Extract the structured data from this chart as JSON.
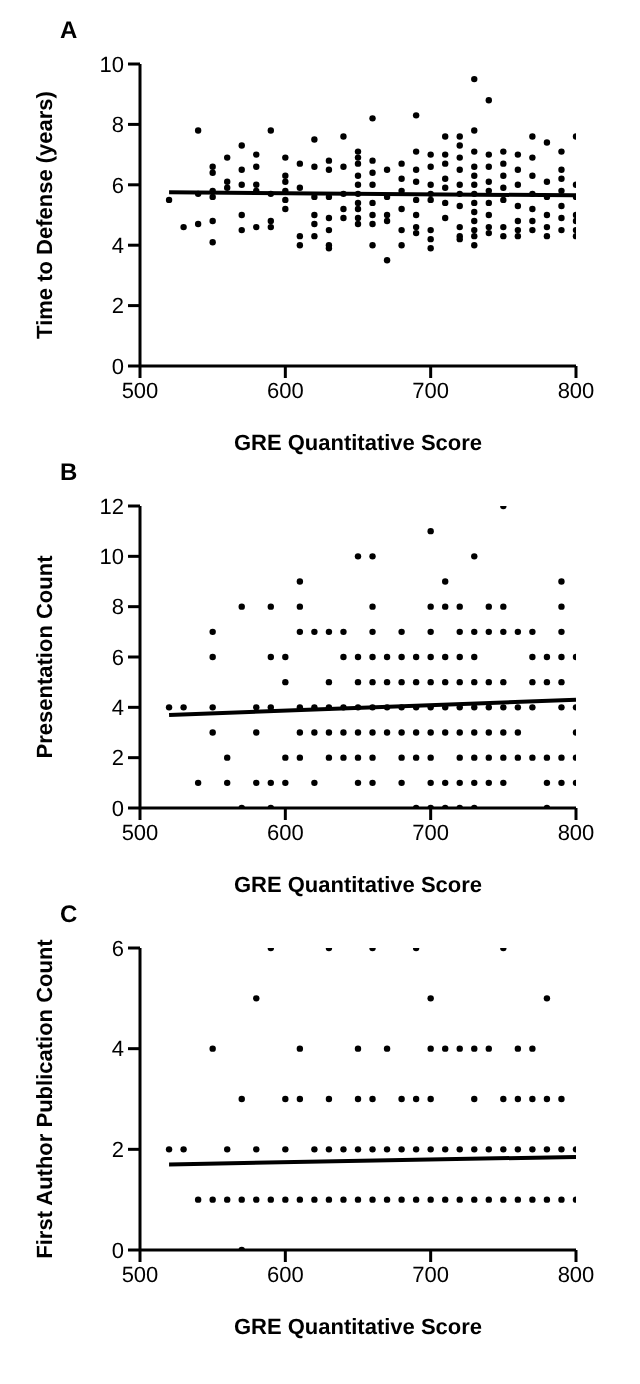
{
  "chart_data": [
    {
      "type": "scatter",
      "title": "A",
      "xlabel": "GRE Quantitative Score",
      "ylabel": "Time to Defense (years)",
      "xlim": [
        500,
        800
      ],
      "xticks": [
        500,
        600,
        700,
        800
      ],
      "ylim": [
        0,
        10
      ],
      "yticks": [
        0,
        2,
        4,
        6,
        8,
        10
      ],
      "grid": false,
      "legend": false,
      "marker": "circle",
      "series": [
        {
          "color": "#000000",
          "x": [
            520,
            530,
            540,
            540,
            540,
            550,
            550,
            550,
            550,
            550,
            550,
            560,
            560,
            560,
            570,
            570,
            570,
            570,
            570,
            580,
            580,
            580,
            580,
            580,
            590,
            590,
            590,
            590,
            600,
            600,
            600,
            600,
            600,
            600,
            610,
            610,
            610,
            610,
            620,
            620,
            620,
            620,
            620,
            620,
            630,
            630,
            630,
            630,
            630,
            630,
            630,
            640,
            640,
            640,
            640,
            640,
            650,
            650,
            650,
            650,
            650,
            650,
            650,
            650,
            650,
            650,
            660,
            660,
            660,
            660,
            660,
            660,
            660,
            660,
            670,
            670,
            670,
            670,
            670,
            680,
            680,
            680,
            680,
            680,
            680,
            690,
            690,
            690,
            690,
            690,
            690,
            690,
            690,
            700,
            700,
            700,
            700,
            700,
            700,
            700,
            700,
            710,
            710,
            710,
            710,
            710,
            710,
            710,
            720,
            720,
            720,
            720,
            720,
            720,
            720,
            720,
            720,
            720,
            730,
            730,
            730,
            730,
            730,
            730,
            730,
            730,
            730,
            730,
            730,
            730,
            730,
            740,
            740,
            740,
            740,
            740,
            740,
            740,
            740,
            740,
            750,
            750,
            750,
            750,
            750,
            750,
            750,
            760,
            760,
            760,
            760,
            760,
            760,
            760,
            770,
            770,
            770,
            770,
            770,
            770,
            770,
            780,
            780,
            780,
            780,
            780,
            780,
            790,
            790,
            790,
            790,
            790,
            790,
            790,
            800,
            800,
            800,
            800,
            800,
            800,
            800
          ],
          "values": [
            5.5,
            4.6,
            7.8,
            5.7,
            4.7,
            6.6,
            6.4,
            5.8,
            5.6,
            4.8,
            4.1,
            6.9,
            6.1,
            5.9,
            7.3,
            6.5,
            6.0,
            5.0,
            4.5,
            7.0,
            6.6,
            6.0,
            5.8,
            4.6,
            7.8,
            5.7,
            4.8,
            4.6,
            6.9,
            6.3,
            6.1,
            5.8,
            5.5,
            5.2,
            6.7,
            5.9,
            4.3,
            4.0,
            7.5,
            6.6,
            5.6,
            5.0,
            4.7,
            4.3,
            6.8,
            6.5,
            5.6,
            4.9,
            4.5,
            4.0,
            3.9,
            7.6,
            6.6,
            5.7,
            5.2,
            4.9,
            7.1,
            6.9,
            6.7,
            6.3,
            6.0,
            5.7,
            5.4,
            5.2,
            4.9,
            4.7,
            8.2,
            6.8,
            6.4,
            6.0,
            5.4,
            5.0,
            4.7,
            4.0,
            6.5,
            5.6,
            5.0,
            4.8,
            3.5,
            6.7,
            6.2,
            5.8,
            5.2,
            4.5,
            4.0,
            8.3,
            7.1,
            6.5,
            6.1,
            5.5,
            5.0,
            4.6,
            4.4,
            7.0,
            6.6,
            6.0,
            5.7,
            5.5,
            4.5,
            4.2,
            3.9,
            7.6,
            7.0,
            6.7,
            6.2,
            5.9,
            5.4,
            4.9,
            7.6,
            7.3,
            6.9,
            6.5,
            6.0,
            5.7,
            5.3,
            4.6,
            4.3,
            4.2,
            9.5,
            7.8,
            7.1,
            6.6,
            6.3,
            6.0,
            5.7,
            5.4,
            5.1,
            4.8,
            4.5,
            4.3,
            4.0,
            8.8,
            7.0,
            6.6,
            6.1,
            5.8,
            5.4,
            5.0,
            4.6,
            4.4,
            7.1,
            6.7,
            6.3,
            5.9,
            5.5,
            4.6,
            4.3,
            7.0,
            6.5,
            6.0,
            5.3,
            4.8,
            4.5,
            4.3,
            7.6,
            6.9,
            6.3,
            5.7,
            5.2,
            4.8,
            4.5,
            7.4,
            6.1,
            5.6,
            5.0,
            4.6,
            4.3,
            7.1,
            6.5,
            6.2,
            5.8,
            5.3,
            4.9,
            4.5,
            7.6,
            6.0,
            5.6,
            5.0,
            4.8,
            4.5,
            4.3
          ]
        },
        {
          "type": "line",
          "color": "#000000",
          "marker": "none",
          "x": [
            520,
            800
          ],
          "values": [
            5.75,
            5.65
          ]
        }
      ]
    },
    {
      "type": "scatter",
      "title": "B",
      "xlabel": "GRE Quantitative Score",
      "ylabel": "Presentation Count",
      "xlim": [
        500,
        800
      ],
      "xticks": [
        500,
        600,
        700,
        800
      ],
      "ylim": [
        0,
        12
      ],
      "yticks": [
        0,
        2,
        4,
        6,
        8,
        10,
        12
      ],
      "grid": false,
      "legend": false,
      "marker": "circle",
      "series": [
        {
          "color": "#000000",
          "x": [
            520,
            530,
            540,
            550,
            550,
            550,
            550,
            560,
            560,
            570,
            570,
            580,
            580,
            580,
            590,
            590,
            590,
            590,
            590,
            600,
            600,
            600,
            600,
            610,
            610,
            610,
            610,
            610,
            610,
            620,
            620,
            620,
            620,
            630,
            630,
            630,
            630,
            630,
            640,
            640,
            640,
            640,
            640,
            650,
            650,
            650,
            650,
            650,
            650,
            650,
            660,
            660,
            660,
            660,
            660,
            660,
            660,
            660,
            660,
            670,
            670,
            670,
            670,
            680,
            680,
            680,
            680,
            680,
            680,
            680,
            690,
            690,
            690,
            690,
            690,
            690,
            700,
            700,
            700,
            700,
            700,
            700,
            700,
            700,
            700,
            700,
            710,
            710,
            710,
            710,
            710,
            710,
            710,
            710,
            720,
            720,
            720,
            720,
            720,
            720,
            720,
            720,
            720,
            730,
            730,
            730,
            730,
            730,
            730,
            730,
            730,
            730,
            740,
            740,
            740,
            740,
            740,
            740,
            740,
            750,
            750,
            750,
            750,
            750,
            750,
            750,
            750,
            760,
            760,
            760,
            760,
            770,
            770,
            770,
            770,
            770,
            780,
            780,
            780,
            780,
            780,
            790,
            790,
            790,
            790,
            790,
            790,
            790,
            790,
            800,
            800,
            800,
            800,
            800
          ],
          "values": [
            4,
            4,
            1,
            7,
            6,
            4,
            3,
            2,
            1,
            8,
            0,
            4,
            3,
            1,
            8,
            6,
            4,
            1,
            0,
            6,
            5,
            2,
            1,
            9,
            8,
            7,
            4,
            3,
            2,
            7,
            4,
            3,
            1,
            7,
            5,
            4,
            3,
            2,
            7,
            6,
            4,
            3,
            2,
            10,
            6,
            5,
            4,
            3,
            2,
            1,
            10,
            8,
            7,
            6,
            5,
            4,
            3,
            2,
            1,
            6,
            5,
            4,
            3,
            7,
            6,
            5,
            4,
            3,
            2,
            1,
            6,
            5,
            4,
            3,
            2,
            0,
            11,
            8,
            7,
            6,
            5,
            4,
            3,
            2,
            1,
            0,
            9,
            8,
            6,
            5,
            4,
            3,
            1,
            0,
            8,
            7,
            6,
            5,
            4,
            3,
            2,
            1,
            0,
            10,
            7,
            6,
            5,
            4,
            3,
            2,
            1,
            0,
            8,
            7,
            5,
            4,
            3,
            2,
            1,
            12,
            8,
            7,
            5,
            4,
            3,
            2,
            1,
            7,
            4,
            3,
            2,
            7,
            6,
            5,
            4,
            2,
            6,
            5,
            2,
            1,
            0,
            9,
            8,
            7,
            6,
            5,
            4,
            2,
            1,
            6,
            4,
            3,
            2,
            1
          ]
        },
        {
          "type": "line",
          "color": "#000000",
          "marker": "none",
          "x": [
            520,
            800
          ],
          "values": [
            3.7,
            4.3
          ]
        }
      ]
    },
    {
      "type": "scatter",
      "title": "C",
      "xlabel": "GRE Quantitative Score",
      "ylabel": "First Author Publication Count",
      "xlim": [
        500,
        800
      ],
      "xticks": [
        500,
        600,
        700,
        800
      ],
      "ylim": [
        0,
        6
      ],
      "yticks": [
        0,
        2,
        4,
        6
      ],
      "grid": false,
      "legend": false,
      "marker": "circle",
      "series": [
        {
          "color": "#000000",
          "x": [
            520,
            530,
            540,
            550,
            550,
            560,
            560,
            570,
            570,
            570,
            580,
            580,
            580,
            590,
            590,
            600,
            600,
            600,
            610,
            610,
            610,
            620,
            620,
            630,
            630,
            630,
            630,
            640,
            640,
            650,
            650,
            650,
            650,
            660,
            660,
            660,
            660,
            670,
            670,
            670,
            680,
            680,
            680,
            690,
            690,
            690,
            690,
            700,
            700,
            700,
            700,
            700,
            710,
            710,
            710,
            720,
            720,
            720,
            730,
            730,
            730,
            730,
            740,
            740,
            740,
            750,
            750,
            750,
            750,
            760,
            760,
            760,
            760,
            770,
            770,
            770,
            770,
            780,
            780,
            780,
            780,
            790,
            790,
            790,
            800,
            800
          ],
          "values": [
            2,
            2,
            1,
            4,
            1,
            2,
            1,
            3,
            1,
            0,
            5,
            2,
            1,
            6,
            1,
            3,
            2,
            1,
            4,
            3,
            1,
            2,
            1,
            6,
            3,
            2,
            1,
            2,
            1,
            4,
            3,
            2,
            1,
            6,
            3,
            2,
            1,
            4,
            2,
            1,
            3,
            2,
            1,
            6,
            3,
            2,
            1,
            5,
            4,
            3,
            2,
            1,
            4,
            2,
            1,
            4,
            2,
            1,
            4,
            3,
            2,
            1,
            4,
            2,
            1,
            6,
            3,
            2,
            1,
            4,
            3,
            2,
            1,
            4,
            3,
            2,
            1,
            5,
            3,
            2,
            1,
            3,
            2,
            1,
            2,
            1
          ]
        },
        {
          "type": "line",
          "color": "#000000",
          "marker": "none",
          "x": [
            520,
            800
          ],
          "values": [
            1.7,
            1.85
          ]
        }
      ]
    }
  ]
}
